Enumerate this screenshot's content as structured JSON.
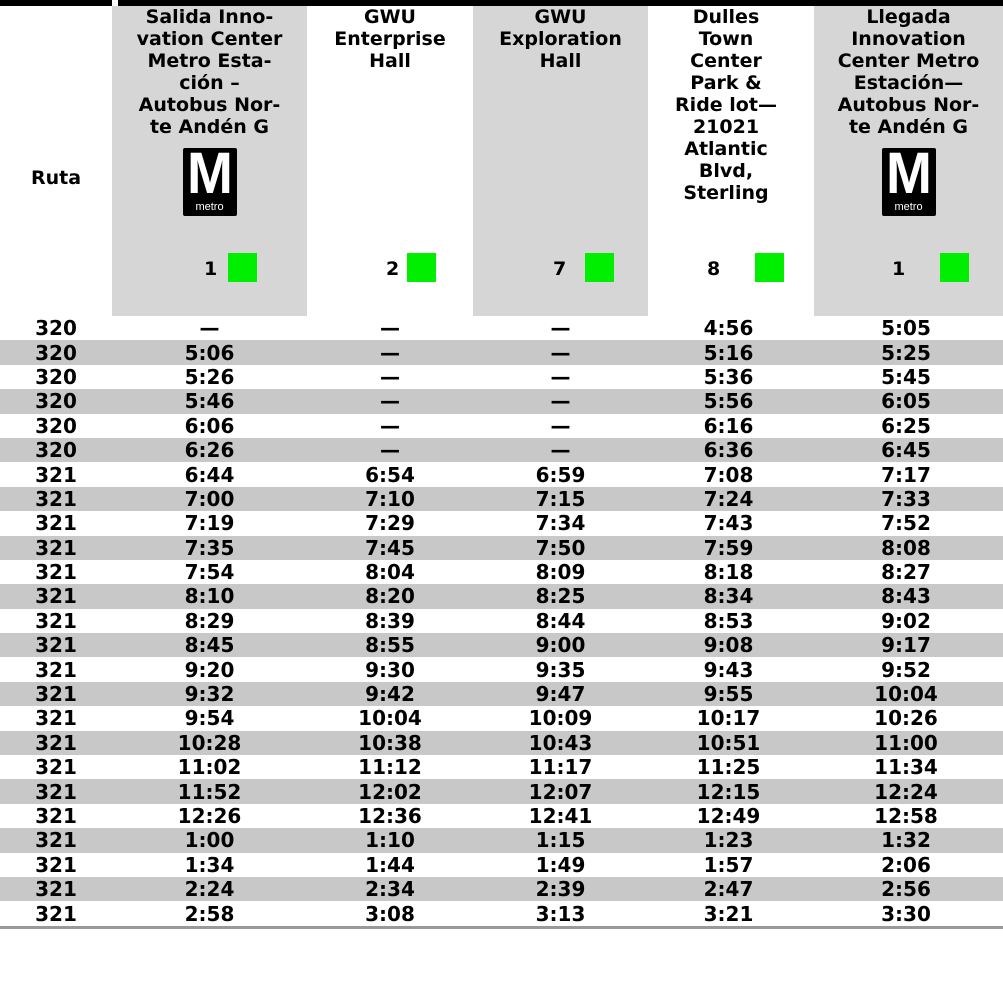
{
  "route_header": "Ruta",
  "logo": {
    "letter": "M",
    "word": "metro"
  },
  "columns": [
    {
      "name": "Salida Inno-\nvation Center\nMetro Esta-\nción –\nAutobus Nor-\nte Andén G",
      "stop": "1",
      "has_logo": true
    },
    {
      "name": "GWU\nEnterprise\nHall",
      "stop": "2",
      "has_logo": false
    },
    {
      "name": "GWU\nExploration\nHall",
      "stop": "7",
      "has_logo": false
    },
    {
      "name": "Dulles\nTown\nCenter\nPark &\nRide lot—\n21021\nAtlantic\nBlvd,\nSterling",
      "stop": "8",
      "has_logo": false
    },
    {
      "name": "Llegada\nInnovation\nCenter Metro\nEstación—\nAutobus Nor-\nte Andén G",
      "stop": "1",
      "has_logo": true
    }
  ],
  "marker_color": "#00ee00",
  "rows": [
    [
      "320",
      "—",
      "—",
      "—",
      "4:56",
      "5:05"
    ],
    [
      "320",
      "5:06",
      "—",
      "—",
      "5:16",
      "5:25"
    ],
    [
      "320",
      "5:26",
      "—",
      "—",
      "5:36",
      "5:45"
    ],
    [
      "320",
      "5:46",
      "—",
      "—",
      "5:56",
      "6:05"
    ],
    [
      "320",
      "6:06",
      "—",
      "—",
      "6:16",
      "6:25"
    ],
    [
      "320",
      "6:26",
      "—",
      "—",
      "6:36",
      "6:45"
    ],
    [
      "321",
      "6:44",
      "6:54",
      "6:59",
      "7:08",
      "7:17"
    ],
    [
      "321",
      "7:00",
      "7:10",
      "7:15",
      "7:24",
      "7:33"
    ],
    [
      "321",
      "7:19",
      "7:29",
      "7:34",
      "7:43",
      "7:52"
    ],
    [
      "321",
      "7:35",
      "7:45",
      "7:50",
      "7:59",
      "8:08"
    ],
    [
      "321",
      "7:54",
      "8:04",
      "8:09",
      "8:18",
      "8:27"
    ],
    [
      "321",
      "8:10",
      "8:20",
      "8:25",
      "8:34",
      "8:43"
    ],
    [
      "321",
      "8:29",
      "8:39",
      "8:44",
      "8:53",
      "9:02"
    ],
    [
      "321",
      "8:45",
      "8:55",
      "9:00",
      "9:08",
      "9:17"
    ],
    [
      "321",
      "9:20",
      "9:30",
      "9:35",
      "9:43",
      "9:52"
    ],
    [
      "321",
      "9:32",
      "9:42",
      "9:47",
      "9:55",
      "10:04"
    ],
    [
      "321",
      "9:54",
      "10:04",
      "10:09",
      "10:17",
      "10:26"
    ],
    [
      "321",
      "10:28",
      "10:38",
      "10:43",
      "10:51",
      "11:00"
    ],
    [
      "321",
      "11:02",
      "11:12",
      "11:17",
      "11:25",
      "11:34"
    ],
    [
      "321",
      "11:52",
      "12:02",
      "12:07",
      "12:15",
      "12:24"
    ],
    [
      "321",
      "12:26",
      "12:36",
      "12:41",
      "12:49",
      "12:58"
    ],
    [
      "321",
      "1:00",
      "1:10",
      "1:15",
      "1:23",
      "1:32"
    ],
    [
      "321",
      "1:34",
      "1:44",
      "1:49",
      "1:57",
      "2:06"
    ],
    [
      "321",
      "2:24",
      "2:34",
      "2:39",
      "2:47",
      "2:56"
    ],
    [
      "321",
      "2:58",
      "3:08",
      "3:13",
      "3:21",
      "3:30"
    ]
  ]
}
